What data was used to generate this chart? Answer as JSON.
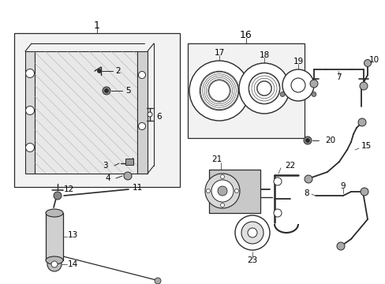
{
  "bg_color": "#ffffff",
  "line_color": "#2a2a2a",
  "box_bg": "#f2f2f2",
  "gray_part": "#888888",
  "light_gray": "#cccccc",
  "label_fs": 7.5,
  "small_fs": 6.5
}
